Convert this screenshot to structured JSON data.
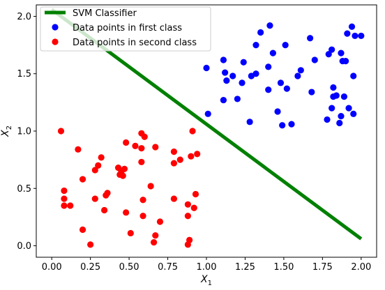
{
  "chart_data": {
    "type": "scatter",
    "xlabel_base": "X",
    "xlabel_sub": "1",
    "ylabel_base": "X",
    "ylabel_sub": "2",
    "xlim": [
      -0.1,
      2.1
    ],
    "ylim": [
      -0.1,
      2.1
    ],
    "x_ticks": [
      "0.00",
      "0.25",
      "0.50",
      "0.75",
      "1.00",
      "1.25",
      "1.50",
      "1.75",
      "2.00"
    ],
    "y_ticks": [
      "0.0",
      "0.5",
      "1.0",
      "1.5",
      "2.0"
    ],
    "grid": false,
    "legend": "top-left",
    "line": {
      "name": "SVM Classifier",
      "color": "#008000",
      "x": [
        0.0,
        2.0
      ],
      "y": [
        2.06,
        0.06
      ]
    },
    "series": [
      {
        "name": "Data points in first class",
        "color": "#0000ff",
        "points": [
          [
            1.41,
            1.92
          ],
          [
            1.35,
            1.86
          ],
          [
            1.94,
            1.91
          ],
          [
            1.91,
            1.85
          ],
          [
            1.96,
            1.83
          ],
          [
            2.0,
            1.83
          ],
          [
            1.67,
            1.81
          ],
          [
            1.81,
            1.71
          ],
          [
            1.87,
            1.68
          ],
          [
            1.79,
            1.67
          ],
          [
            1.43,
            1.68
          ],
          [
            1.51,
            1.75
          ],
          [
            1.32,
            1.75
          ],
          [
            1.88,
            1.61
          ],
          [
            1.9,
            1.61
          ],
          [
            1.7,
            1.62
          ],
          [
            1.11,
            1.62
          ],
          [
            1.24,
            1.6
          ],
          [
            1.0,
            1.55
          ],
          [
            1.4,
            1.56
          ],
          [
            1.12,
            1.51
          ],
          [
            1.17,
            1.48
          ],
          [
            1.32,
            1.5
          ],
          [
            1.29,
            1.48
          ],
          [
            1.61,
            1.53
          ],
          [
            1.59,
            1.48
          ],
          [
            1.95,
            1.48
          ],
          [
            1.13,
            1.44
          ],
          [
            1.23,
            1.42
          ],
          [
            1.48,
            1.42
          ],
          [
            1.52,
            1.37
          ],
          [
            1.4,
            1.36
          ],
          [
            1.68,
            1.34
          ],
          [
            1.82,
            1.38
          ],
          [
            1.84,
            1.31
          ],
          [
            1.82,
            1.3
          ],
          [
            1.89,
            1.3
          ],
          [
            1.11,
            1.27
          ],
          [
            1.2,
            1.28
          ],
          [
            1.81,
            1.2
          ],
          [
            1.92,
            1.2
          ],
          [
            1.95,
            1.15
          ],
          [
            1.01,
            1.15
          ],
          [
            1.46,
            1.17
          ],
          [
            1.87,
            1.13
          ],
          [
            1.78,
            1.1
          ],
          [
            1.28,
            1.08
          ],
          [
            1.86,
            1.07
          ],
          [
            1.49,
            1.05
          ],
          [
            1.55,
            1.06
          ]
        ]
      },
      {
        "name": "Data points in second class",
        "color": "#ff0000",
        "points": [
          [
            0.06,
            1.0
          ],
          [
            0.58,
            0.98
          ],
          [
            0.91,
            1.0
          ],
          [
            0.6,
            0.95
          ],
          [
            0.48,
            0.9
          ],
          [
            0.54,
            0.87
          ],
          [
            0.58,
            0.85
          ],
          [
            0.67,
            0.86
          ],
          [
            0.17,
            0.84
          ],
          [
            0.79,
            0.82
          ],
          [
            0.94,
            0.8
          ],
          [
            0.9,
            0.78
          ],
          [
            0.32,
            0.77
          ],
          [
            0.83,
            0.75
          ],
          [
            0.58,
            0.73
          ],
          [
            0.79,
            0.72
          ],
          [
            0.3,
            0.7
          ],
          [
            0.43,
            0.68
          ],
          [
            0.47,
            0.67
          ],
          [
            0.45,
            0.65
          ],
          [
            0.28,
            0.66
          ],
          [
            0.46,
            0.61
          ],
          [
            0.44,
            0.62
          ],
          [
            0.2,
            0.58
          ],
          [
            0.64,
            0.52
          ],
          [
            0.08,
            0.48
          ],
          [
            0.36,
            0.46
          ],
          [
            0.35,
            0.44
          ],
          [
            0.93,
            0.45
          ],
          [
            0.08,
            0.41
          ],
          [
            0.28,
            0.41
          ],
          [
            0.59,
            0.4
          ],
          [
            0.79,
            0.41
          ],
          [
            0.12,
            0.35
          ],
          [
            0.08,
            0.35
          ],
          [
            0.88,
            0.36
          ],
          [
            0.92,
            0.33
          ],
          [
            0.34,
            0.31
          ],
          [
            0.48,
            0.29
          ],
          [
            0.59,
            0.26
          ],
          [
            0.88,
            0.26
          ],
          [
            0.7,
            0.21
          ],
          [
            0.2,
            0.14
          ],
          [
            0.51,
            0.11
          ],
          [
            0.67,
            0.09
          ],
          [
            0.89,
            0.05
          ],
          [
            0.66,
            0.03
          ],
          [
            0.25,
            0.01
          ],
          [
            0.88,
            0.01
          ]
        ]
      }
    ]
  }
}
